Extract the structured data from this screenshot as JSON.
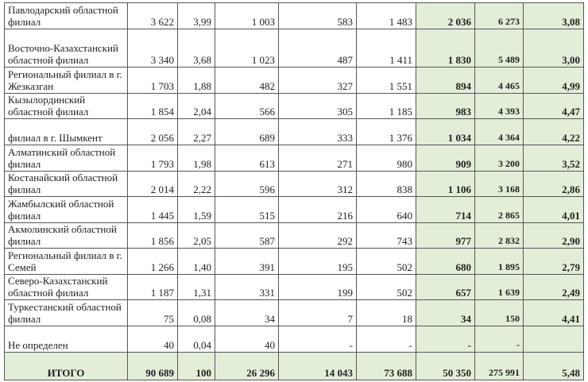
{
  "colors": {
    "highlight": "#e3eed9",
    "border": "#555555"
  },
  "rows": [
    {
      "name": "Павлодарский областной филиал",
      "c1": "3 622",
      "c2": "3,99",
      "c3": "1 003",
      "c4": "583",
      "c5": "1 483",
      "c6": "2 036",
      "c7": "6 273",
      "c8": "3,08"
    },
    {
      "name": "Восточно-Казахстанский областной филиал",
      "c1": "3 340",
      "c2": "3,68",
      "c3": "1 023",
      "c4": "487",
      "c5": "1 411",
      "c6": "1 830",
      "c7": "5 489",
      "c8": "3,00"
    },
    {
      "name": "Региональный филиал в г. Жезказган",
      "c1": "1 703",
      "c2": "1,88",
      "c3": "482",
      "c4": "327",
      "c5": "1 551",
      "c6": "894",
      "c7": "4 465",
      "c8": "4,99"
    },
    {
      "name": "Кызылординский областной филиал",
      "c1": "1 854",
      "c2": "2,04",
      "c3": "566",
      "c4": "305",
      "c5": "1 185",
      "c6": "983",
      "c7": "4 393",
      "c8": "4,47"
    },
    {
      "name": "филиал в г. Шымкент",
      "c1": "2 056",
      "c2": "2,27",
      "c3": "689",
      "c4": "333",
      "c5": "1 376",
      "c6": "1 034",
      "c7": "4 364",
      "c8": "4,22"
    },
    {
      "name": "Алматинский областной филиал",
      "c1": "1 793",
      "c2": "1,98",
      "c3": "613",
      "c4": "271",
      "c5": "980",
      "c6": "909",
      "c7": "3 200",
      "c8": "3,52"
    },
    {
      "name": "Костанайский областной филиал",
      "c1": "2 014",
      "c2": "2,22",
      "c3": "596",
      "c4": "312",
      "c5": "838",
      "c6": "1 106",
      "c7": "3 168",
      "c8": "2,86"
    },
    {
      "name": "Жамбылский областной филиал",
      "c1": "1 445",
      "c2": "1,59",
      "c3": "515",
      "c4": "216",
      "c5": "640",
      "c6": "714",
      "c7": "2 865",
      "c8": "4,01"
    },
    {
      "name": "Акмолинский областной филиал",
      "c1": "1 856",
      "c2": "2,05",
      "c3": "587",
      "c4": "292",
      "c5": "743",
      "c6": "977",
      "c7": "2 832",
      "c8": "2,90"
    },
    {
      "name": "Региональный филиал в г. Семей",
      "c1": "1 266",
      "c2": "1,40",
      "c3": "391",
      "c4": "195",
      "c5": "502",
      "c6": "680",
      "c7": "1 895",
      "c8": "2,79"
    },
    {
      "name": "Северо-Казахстанский областной филиал",
      "c1": "1 187",
      "c2": "1,31",
      "c3": "331",
      "c4": "199",
      "c5": "502",
      "c6": "657",
      "c7": "1 639",
      "c8": "2,49"
    },
    {
      "name": "Туркестанский областной филиал",
      "c1": "75",
      "c2": "0,08",
      "c3": "34",
      "c4": "7",
      "c5": "18",
      "c6": "34",
      "c7": "150",
      "c8": "4,41"
    },
    {
      "name": "Не определен",
      "c1": "40",
      "c2": "0,04",
      "c3": "40",
      "c4": "-",
      "c5": "-",
      "c6": "-",
      "c7": "-",
      "c8": ""
    }
  ],
  "total": {
    "name": "ИТОГО",
    "c1": "90 689",
    "c2": "100",
    "c3": "26 296",
    "c4": "14 043",
    "c5": "73 688",
    "c6": "50 350",
    "c7": "275 991",
    "c8": "5,48"
  }
}
